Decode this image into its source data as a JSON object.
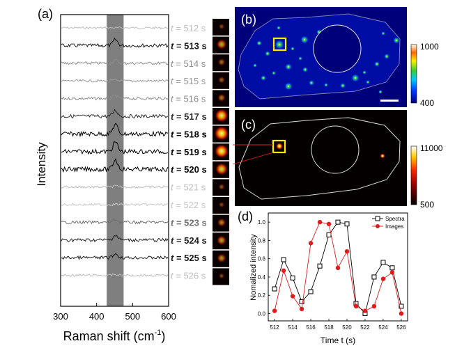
{
  "figure": {
    "panel_labels": {
      "a": "(a)",
      "b": "(b)",
      "c": "(c)",
      "d": "(d)"
    }
  },
  "panel_a": {
    "ylabel": "Intensity",
    "xlabel": "Raman shift (cm",
    "xlabel_sup": "-1",
    "xlabel_close": ")",
    "xticks": [
      "300",
      "400",
      "500",
      "600"
    ],
    "xlim": [
      300,
      600
    ],
    "highlight_band": [
      428,
      475
    ],
    "times": [
      "512",
      "513",
      "514",
      "515",
      "516",
      "517",
      "518",
      "519",
      "520",
      "521",
      "522",
      "523",
      "524",
      "525",
      "526"
    ],
    "time_prefix": "t",
    "time_unit": "s",
    "trace_colors": [
      "#bdbdbd",
      "#1a1a1a",
      "#8c8c8c",
      "#9a9a9a",
      "#8c8c8c",
      "#2b2b2b",
      "#000000",
      "#000000",
      "#000000",
      "#bdbdbd",
      "#c8c8c8",
      "#6e6e6e",
      "#1f1f1f",
      "#1a1a1a",
      "#bdbdbd"
    ],
    "peak_heights": [
      0,
      0.6,
      0.3,
      0.1,
      0.3,
      0.6,
      1.0,
      1.0,
      1.0,
      0.1,
      0.05,
      0.3,
      0.5,
      0.4,
      0.1
    ],
    "bold": [
      false,
      true,
      false,
      false,
      false,
      true,
      true,
      true,
      true,
      false,
      false,
      true,
      true,
      true,
      false
    ],
    "thumb_intensity": [
      0.15,
      0.55,
      0.3,
      0.25,
      0.35,
      0.85,
      0.95,
      0.9,
      0.75,
      0.2,
      0.15,
      0.4,
      0.5,
      0.45,
      0.15
    ]
  },
  "panel_b": {
    "colorbar_max": "1000",
    "colorbar_min": "400"
  },
  "panel_c": {
    "colorbar_max": "11000",
    "colorbar_min": "500"
  },
  "chart_data": {
    "type": "line",
    "xlabel": "Time t (s)",
    "ylabel": "Nomalized intensity",
    "xlim": [
      511.3,
      526.7
    ],
    "ylim": [
      -0.08,
      1.1
    ],
    "xticks": [
      512,
      514,
      516,
      518,
      520,
      522,
      524,
      526
    ],
    "yticks": [
      "0.0",
      "0.2",
      "0.4",
      "0.6",
      "0.8",
      "1.0"
    ],
    "x": [
      512,
      513,
      514,
      515,
      516,
      517,
      518,
      519,
      520,
      521,
      522,
      523,
      524,
      525,
      526
    ],
    "series": [
      {
        "name": "Spectra",
        "color": "#000000",
        "marker": "open-square",
        "values": [
          0.27,
          0.59,
          0.39,
          0.13,
          0.24,
          0.52,
          0.86,
          1.0,
          0.98,
          0.11,
          0.0,
          0.4,
          0.56,
          0.5,
          0.08
        ]
      },
      {
        "name": "Images",
        "color": "#e31a1c",
        "marker": "filled-circle",
        "values": [
          0.03,
          0.47,
          0.19,
          0.05,
          0.77,
          1.0,
          0.98,
          0.5,
          0.68,
          0.08,
          0.03,
          0.08,
          0.38,
          0.45,
          0.0
        ]
      }
    ],
    "legend_position": "top-right"
  }
}
